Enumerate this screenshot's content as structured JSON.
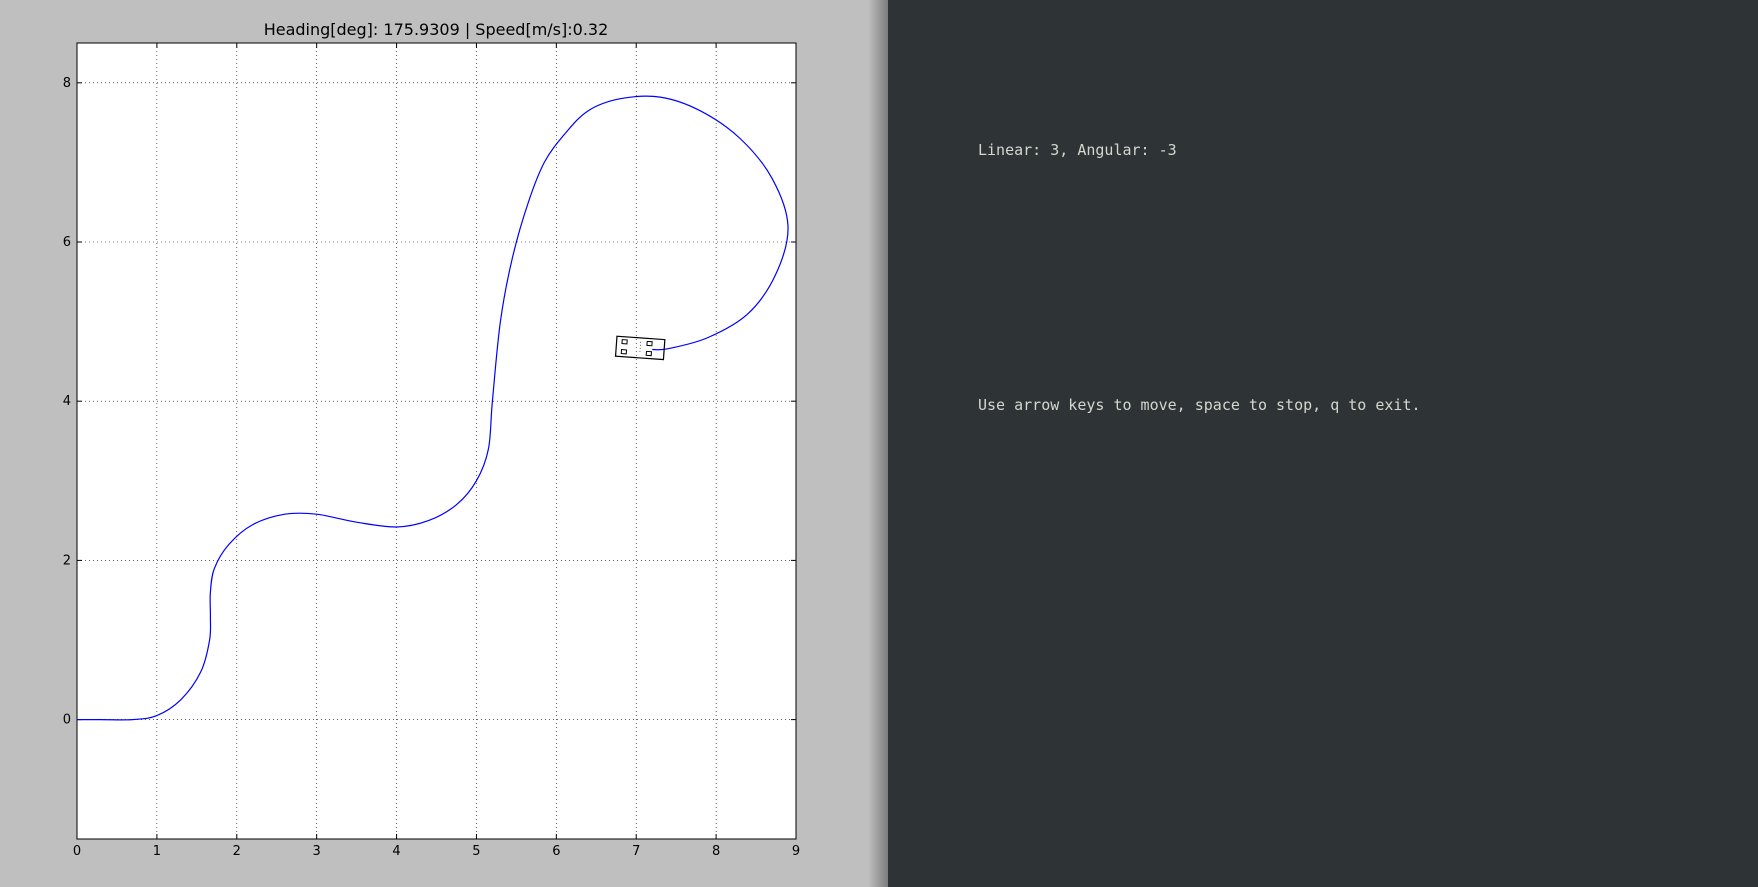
{
  "plot_window": {
    "title": "Heading[deg]: 175.9309 | Speed[m/s]:0.32"
  },
  "terminal": {
    "lines": [
      "Linear: 3, Angular: -3",
      "Use arrow keys to move, space to stop, q to exit."
    ]
  },
  "chart_data": {
    "type": "line",
    "title": "Heading[deg]: 175.9309 | Speed[m/s]:0.32",
    "xlabel": "",
    "ylabel": "",
    "xlim": [
      0,
      9
    ],
    "ylim": [
      -1.5,
      8.5
    ],
    "xticks": [
      0,
      1,
      2,
      3,
      4,
      5,
      6,
      7,
      8,
      9
    ],
    "yticks": [
      0,
      2,
      4,
      6,
      8
    ],
    "grid": true,
    "line_color": "#0000ff",
    "series": [
      {
        "x": [
          0,
          0.3,
          0.7,
          1.0,
          1.3,
          1.55,
          1.66,
          1.67,
          1.67,
          1.72,
          1.9,
          2.2,
          2.6,
          3.0,
          3.5,
          4.0,
          4.4,
          4.75,
          5.0,
          5.15,
          5.2,
          5.3,
          5.45,
          5.65,
          5.85,
          6.1,
          6.4,
          6.8,
          7.3,
          7.8,
          8.3,
          8.7,
          8.9,
          8.75,
          8.4,
          7.9,
          7.4,
          7.2
        ],
        "y": [
          0,
          0,
          0,
          0.05,
          0.25,
          0.6,
          1.0,
          1.3,
          1.6,
          1.9,
          2.2,
          2.45,
          2.58,
          2.58,
          2.48,
          2.42,
          2.5,
          2.7,
          3.0,
          3.4,
          4.0,
          5.0,
          5.8,
          6.5,
          7.0,
          7.35,
          7.65,
          7.8,
          7.82,
          7.65,
          7.3,
          6.8,
          6.2,
          5.6,
          5.1,
          4.8,
          4.66,
          4.65
        ]
      }
    ],
    "vehicle": {
      "x": 7.05,
      "y": 4.67,
      "heading_deg": 175.9309
    }
  }
}
